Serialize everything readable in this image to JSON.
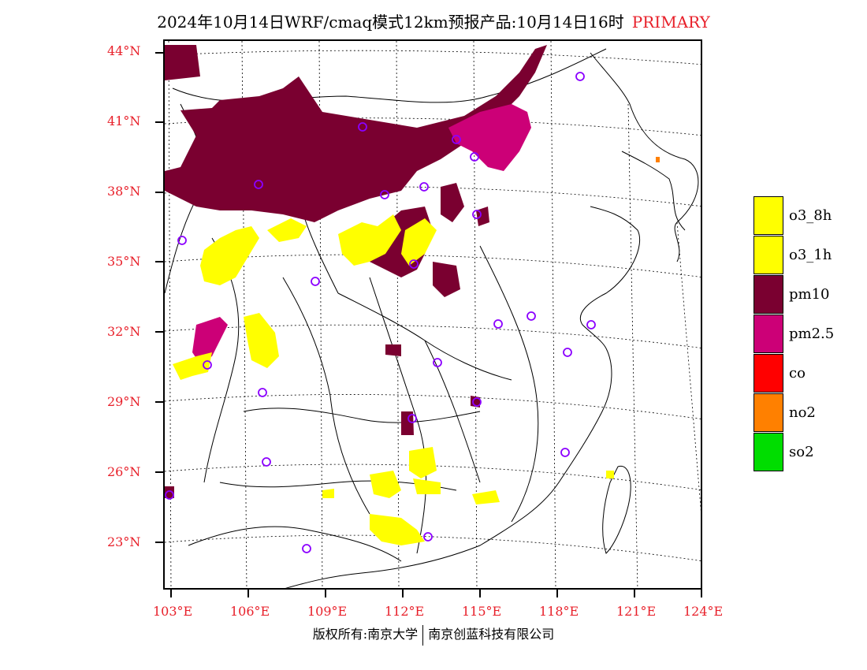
{
  "title": {
    "main": "2024年10月14日WRF/cmaq模式12km预报产品:10月14日16时",
    "primary": "PRIMARY"
  },
  "map": {
    "lat_labels": [
      "44°N",
      "41°N",
      "38°N",
      "35°N",
      "32°N",
      "29°N",
      "26°N",
      "23°N"
    ],
    "lon_labels": [
      "103°E",
      "106°E",
      "109°E",
      "112°E",
      "115°E",
      "118°E",
      "121°E",
      "124°E"
    ],
    "colors": {
      "pm10": "#7a0030",
      "pm25": "#cc0077",
      "o3": "#ffff00",
      "no2": "#ff8000",
      "station_marker": "#8b00ff"
    }
  },
  "legend": {
    "items": [
      {
        "label": "o3_8h",
        "color": "#ffff00"
      },
      {
        "label": "o3_1h",
        "color": "#ffff00"
      },
      {
        "label": "pm10",
        "color": "#7a0030"
      },
      {
        "label": "pm2.5",
        "color": "#cc0077"
      },
      {
        "label": "co",
        "color": "#ff0000"
      },
      {
        "label": "no2",
        "color": "#ff8000"
      },
      {
        "label": "so2",
        "color": "#00dd00"
      }
    ]
  },
  "footer": {
    "left": "版权所有:南京大学",
    "right": "南京创蓝科技有限公司"
  }
}
